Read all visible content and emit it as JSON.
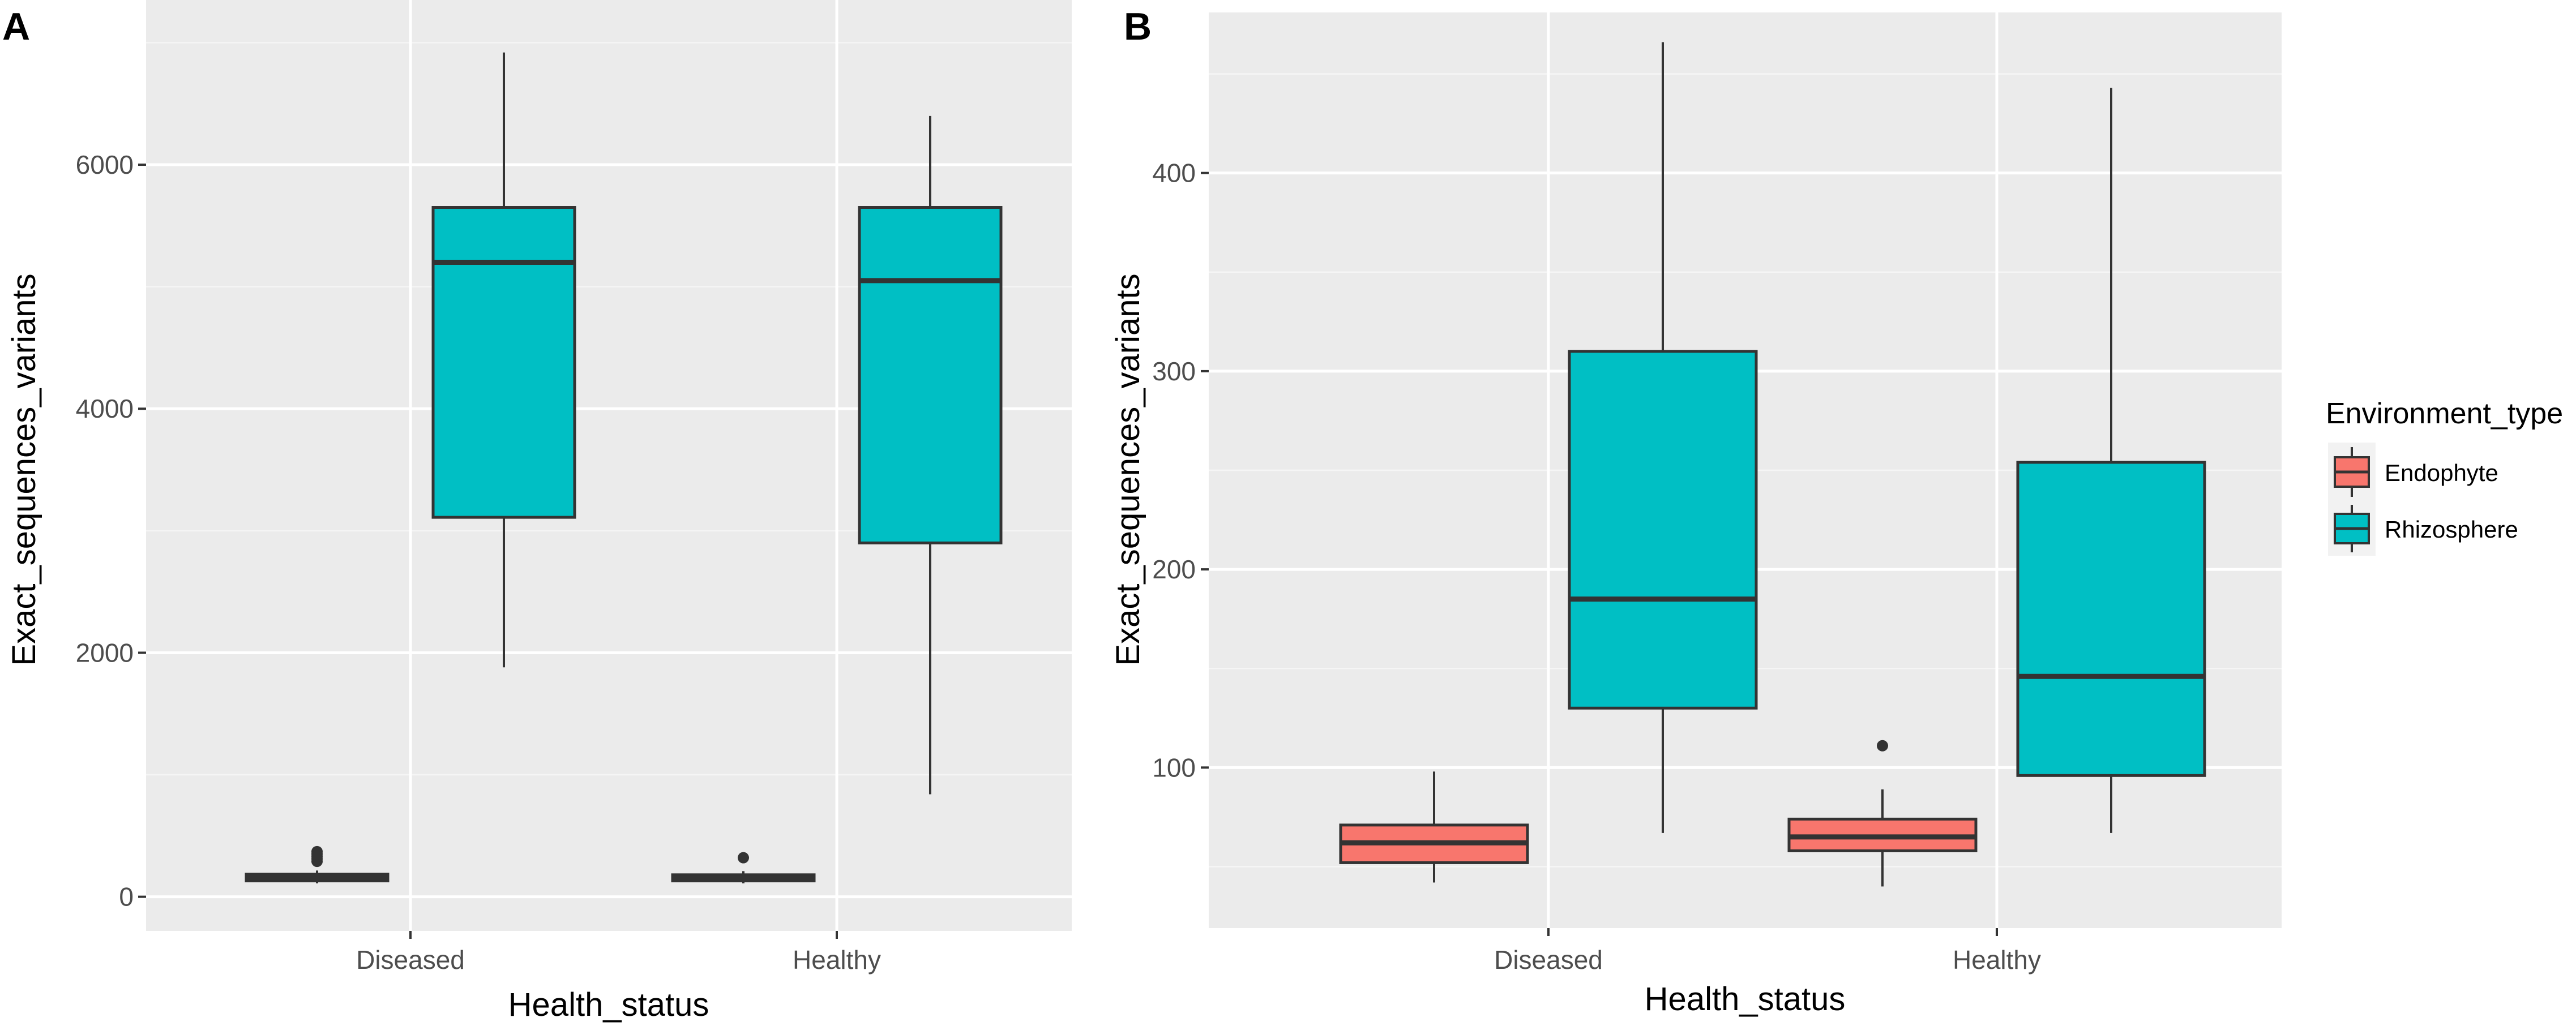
{
  "chart_data": [
    {
      "panel_label": "A",
      "type": "boxplot",
      "xlabel": "Health_status",
      "ylabel": "Exact_sequences_variants",
      "categories": [
        "Diseased",
        "Healthy"
      ],
      "ylim": [
        -280,
        7350
      ],
      "yticks": [
        0,
        2000,
        4000,
        6000
      ],
      "ytick_labels": [
        "0",
        "2000",
        "4000",
        "6000"
      ],
      "grid": true,
      "series": [
        {
          "name": "Endophyte",
          "color": "#f8766d",
          "boxes": [
            {
              "category": "Diseased",
              "min": 110,
              "q1": 130,
              "median": 155,
              "q3": 185,
              "max": 215,
              "outliers": [
                290,
                310,
                330,
                350,
                370
              ]
            },
            {
              "category": "Healthy",
              "min": 110,
              "q1": 130,
              "median": 150,
              "q3": 180,
              "max": 210,
              "outliers": [
                320
              ]
            }
          ]
        },
        {
          "name": "Rhizosphere",
          "color": "#00bfc4",
          "boxes": [
            {
              "category": "Diseased",
              "min": 1880,
              "q1": 3110,
              "median": 5200,
              "q3": 5650,
              "max": 6920,
              "outliers": []
            },
            {
              "category": "Healthy",
              "min": 840,
              "q1": 2900,
              "median": 5050,
              "q3": 5650,
              "max": 6400,
              "outliers": []
            }
          ]
        }
      ]
    },
    {
      "panel_label": "B",
      "type": "boxplot",
      "xlabel": "Health_status",
      "ylabel": "Exact_sequences_variants",
      "categories": [
        "Diseased",
        "Healthy"
      ],
      "ylim": [
        19,
        481
      ],
      "yticks": [
        100,
        200,
        300,
        400
      ],
      "ytick_labels": [
        "100",
        "200",
        "300",
        "400"
      ],
      "grid": true,
      "legend": {
        "title": "Environment_type",
        "position": "right",
        "items": [
          {
            "label": "Endophyte",
            "color": "#f8766d"
          },
          {
            "label": "Rhizosphere",
            "color": "#00bfc4"
          }
        ]
      },
      "series": [
        {
          "name": "Endophyte",
          "color": "#f8766d",
          "boxes": [
            {
              "category": "Diseased",
              "min": 42,
              "q1": 52,
              "median": 62,
              "q3": 71,
              "max": 98,
              "outliers": []
            },
            {
              "category": "Healthy",
              "min": 40,
              "q1": 58,
              "median": 65,
              "q3": 74,
              "max": 89,
              "outliers": [
                111
              ]
            }
          ]
        },
        {
          "name": "Rhizosphere",
          "color": "#00bfc4",
          "boxes": [
            {
              "category": "Diseased",
              "min": 67,
              "q1": 130,
              "median": 185,
              "q3": 310,
              "max": 466,
              "outliers": []
            },
            {
              "category": "Healthy",
              "min": 67,
              "q1": 96,
              "median": 146,
              "q3": 254,
              "max": 443,
              "outliers": []
            }
          ]
        }
      ]
    }
  ]
}
